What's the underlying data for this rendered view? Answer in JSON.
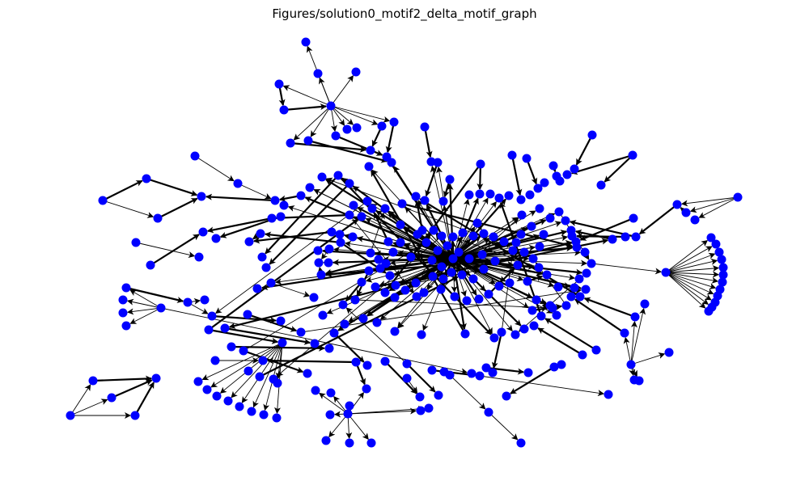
{
  "title": "Figures/solution0_motif2_delta_motif_graph",
  "colors": {
    "node": "#0000ff",
    "edge": "#000000",
    "background": "#ffffff"
  },
  "chart_data": {
    "type": "network",
    "directed": true,
    "node_color": "#0000ff",
    "edge_color": "#000000",
    "axes": "off",
    "title": "Figures/solution0_motif2_delta_motif_graph"
  }
}
